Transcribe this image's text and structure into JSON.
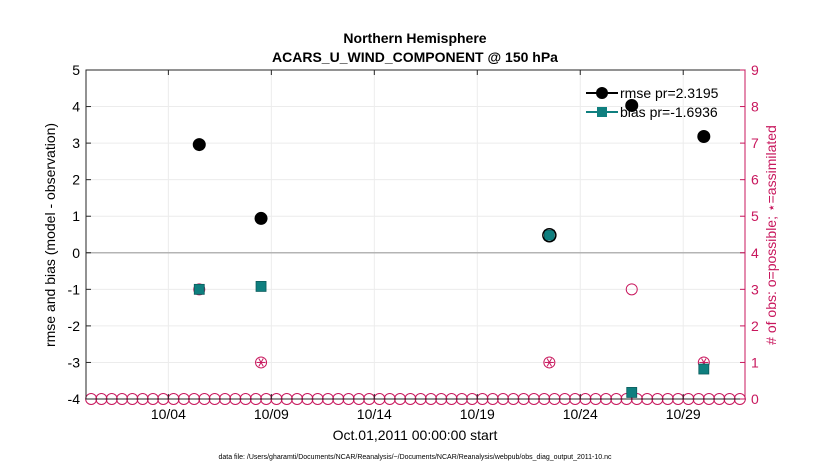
{
  "chart_data": {
    "type": "scatter",
    "title": "Northern Hemisphere",
    "subtitle": "ACARS_U_WIND_COMPONENT @ 150 hPa",
    "xlabel": "Oct.01,2011 00:00:00 start",
    "ylabel": "rmse and bias (model - observation)",
    "y2label": "# of obs: o=possible; ⋆=assimilated",
    "footnote": "data file: /Users/gharamti/Documents/NCAR/Reanalysis/~/Documents/NCAR/Reanalysis/webpub/obs_diag_output_2011-10.nc",
    "xlim": [
      0,
      32
    ],
    "ylim": [
      -4,
      5
    ],
    "y2lim": [
      0,
      9
    ],
    "xticks": [
      {
        "x": 4,
        "label": "10/04"
      },
      {
        "x": 9,
        "label": "10/09"
      },
      {
        "x": 14,
        "label": "10/14"
      },
      {
        "x": 19,
        "label": "10/19"
      },
      {
        "x": 24,
        "label": "10/24"
      },
      {
        "x": 29,
        "label": "10/29"
      }
    ],
    "yticks": [
      -4,
      -3,
      -2,
      -1,
      0,
      1,
      2,
      3,
      4,
      5
    ],
    "yticklabels": [
      "-4",
      "-3",
      "-2",
      "-1",
      "0",
      "1",
      "2",
      "3",
      "4",
      "5"
    ],
    "y2ticks": [
      0,
      1,
      2,
      3,
      4,
      5,
      6,
      7,
      8,
      9
    ],
    "y2ticklabels": [
      "0",
      "1",
      "2",
      "3",
      "4",
      "5",
      "6",
      "7",
      "8",
      "9"
    ],
    "grid": true,
    "zero_line": 0,
    "series": [
      {
        "name": "rmse",
        "legend": "rmse pr=2.3195",
        "marker": "circle",
        "color": "#000000",
        "points": [
          {
            "x": 5.5,
            "y": 2.96
          },
          {
            "x": 8.5,
            "y": 0.94
          },
          {
            "x": 22.5,
            "y": 0.48
          },
          {
            "x": 26.5,
            "y": 4.03
          },
          {
            "x": 30.0,
            "y": 3.18
          }
        ]
      },
      {
        "name": "bias",
        "legend": "bias pr=-1.6936",
        "marker": "square",
        "color": "#0f7f7f",
        "points": [
          {
            "x": 5.5,
            "y": -1.0
          },
          {
            "x": 8.5,
            "y": -0.92
          },
          {
            "x": 22.5,
            "y": 0.48
          },
          {
            "x": 26.5,
            "y": -3.82
          },
          {
            "x": 30.0,
            "y": -3.18
          }
        ]
      },
      {
        "name": "obs possible",
        "marker": "open-circle",
        "color": "#c8175d",
        "axis": "right",
        "x": [
          0.25,
          0.75,
          1.25,
          1.75,
          2.25,
          2.75,
          3.25,
          3.75,
          4.25,
          4.75,
          5.25,
          5.75,
          6.25,
          6.75,
          7.25,
          7.75,
          8.25,
          8.75,
          9.25,
          9.75,
          10.25,
          10.75,
          11.25,
          11.75,
          12.25,
          12.75,
          13.25,
          13.75,
          14.25,
          14.75,
          15.25,
          15.75,
          16.25,
          16.75,
          17.25,
          17.75,
          18.25,
          18.75,
          19.25,
          19.75,
          20.25,
          20.75,
          21.25,
          21.75,
          22.25,
          22.75,
          23.25,
          23.75,
          24.25,
          24.75,
          25.25,
          25.75,
          26.25,
          26.75,
          27.25,
          27.75,
          28.25,
          28.75,
          29.25,
          29.75,
          30.25,
          30.75,
          31.25,
          31.75
        ],
        "y": [
          0,
          0,
          0,
          0,
          0,
          0,
          0,
          0,
          0,
          0,
          0,
          0,
          0,
          0,
          0,
          0,
          0,
          0,
          0,
          0,
          0,
          0,
          0,
          0,
          0,
          0,
          0,
          0,
          0,
          0,
          0,
          0,
          0,
          0,
          0,
          0,
          0,
          0,
          0,
          0,
          0,
          0,
          0,
          0,
          0,
          0,
          0,
          0,
          0,
          0,
          0,
          0,
          0,
          0,
          0,
          0,
          0,
          0,
          0,
          0,
          0,
          0,
          0,
          0
        ],
        "highlights": [
          {
            "x": 5.5,
            "y": 3
          },
          {
            "x": 8.5,
            "y": 1
          },
          {
            "x": 22.5,
            "y": 1
          },
          {
            "x": 26.5,
            "y": 3
          },
          {
            "x": 30.0,
            "y": 1
          }
        ]
      },
      {
        "name": "obs assimilated",
        "marker": "star",
        "color": "#c8175d",
        "axis": "right",
        "points": [
          {
            "x": 5.5,
            "y": 3
          },
          {
            "x": 8.5,
            "y": 1
          },
          {
            "x": 22.5,
            "y": 1
          },
          {
            "x": 30.0,
            "y": 1
          }
        ]
      }
    ],
    "legend_position": "top-right"
  }
}
